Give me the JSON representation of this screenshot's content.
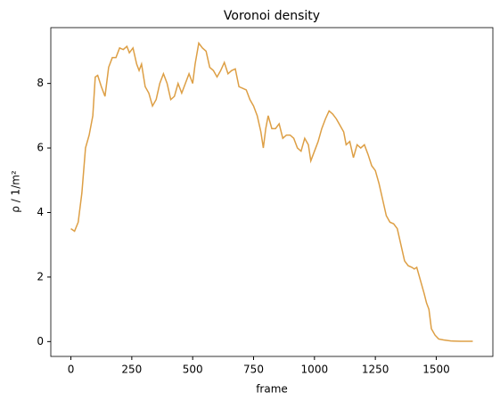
{
  "chart_data": {
    "type": "line",
    "title": "Voronoi density",
    "xlabel": "frame",
    "ylabel": "ρ / 1/m²",
    "x": [
      0,
      15,
      30,
      45,
      60,
      75,
      90,
      100,
      110,
      125,
      140,
      155,
      170,
      185,
      200,
      215,
      230,
      240,
      255,
      270,
      280,
      290,
      305,
      320,
      335,
      350,
      365,
      380,
      395,
      410,
      425,
      440,
      455,
      470,
      485,
      500,
      510,
      525,
      540,
      555,
      570,
      585,
      600,
      615,
      630,
      645,
      660,
      675,
      690,
      705,
      720,
      735,
      750,
      765,
      780,
      790,
      800,
      810,
      825,
      840,
      855,
      870,
      885,
      900,
      915,
      930,
      945,
      960,
      975,
      985,
      1000,
      1015,
      1030,
      1045,
      1060,
      1075,
      1090,
      1105,
      1120,
      1130,
      1145,
      1160,
      1175,
      1190,
      1205,
      1220,
      1235,
      1250,
      1265,
      1280,
      1295,
      1310,
      1325,
      1340,
      1355,
      1370,
      1385,
      1400,
      1410,
      1420,
      1435,
      1450,
      1460,
      1470,
      1480,
      1495,
      1510,
      1530,
      1560,
      1600,
      1650
    ],
    "series": [
      {
        "name": "density",
        "color": "#dd9f45",
        "values": [
          3.5,
          3.42,
          3.7,
          4.6,
          6.0,
          6.4,
          7.0,
          8.2,
          8.25,
          7.9,
          7.6,
          8.5,
          8.8,
          8.8,
          9.1,
          9.05,
          9.15,
          8.95,
          9.1,
          8.6,
          8.4,
          8.6,
          7.9,
          7.7,
          7.3,
          7.5,
          8.0,
          8.3,
          8.0,
          7.5,
          7.6,
          8.0,
          7.7,
          8.0,
          8.3,
          8.0,
          8.6,
          9.25,
          9.1,
          9.0,
          8.5,
          8.4,
          8.2,
          8.4,
          8.65,
          8.3,
          8.4,
          8.45,
          7.9,
          7.85,
          7.8,
          7.5,
          7.3,
          7.0,
          6.5,
          6.0,
          6.6,
          7.0,
          6.6,
          6.6,
          6.75,
          6.3,
          6.4,
          6.4,
          6.3,
          6.0,
          5.9,
          6.3,
          6.1,
          5.6,
          5.9,
          6.2,
          6.6,
          6.9,
          7.15,
          7.05,
          6.9,
          6.7,
          6.5,
          6.1,
          6.2,
          5.7,
          6.1,
          6.0,
          6.1,
          5.8,
          5.45,
          5.3,
          4.9,
          4.4,
          3.9,
          3.7,
          3.65,
          3.5,
          3.0,
          2.5,
          2.35,
          2.3,
          2.25,
          2.3,
          1.9,
          1.5,
          1.2,
          1.0,
          0.4,
          0.2,
          0.08,
          0.05,
          0.02,
          0.01,
          0.01
        ]
      }
    ],
    "xlim": [
      -82.5,
      1732.5
    ],
    "xticks": [
      0,
      250,
      500,
      750,
      1000,
      1250,
      1500
    ],
    "ylim": [
      -0.46,
      9.73
    ],
    "yticks": [
      0,
      2,
      4,
      6,
      8
    ]
  }
}
